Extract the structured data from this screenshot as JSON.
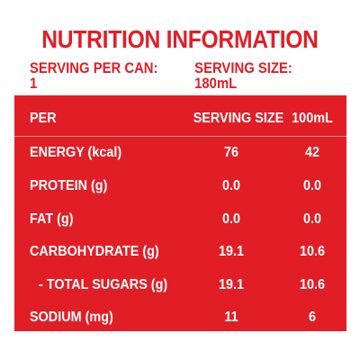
{
  "title": "NUTRITION INFORMATION",
  "serving_per_can": "SERVING PER CAN: 1",
  "serving_size": "SERVING SIZE: 180mL",
  "colors": {
    "accent": "#e11e26",
    "text_on_accent": "#ffffff"
  },
  "table": {
    "header": {
      "label": "PER",
      "col1": "SERVING SIZE",
      "col2": "100mL"
    },
    "rows": [
      {
        "label": "ENERGY (kcal)",
        "serving": "76",
        "per100": "42"
      },
      {
        "label": "PROTEIN (g)",
        "serving": "0.0",
        "per100": "0.0"
      },
      {
        "label": "FAT (g)",
        "serving": "0.0",
        "per100": "0.0"
      },
      {
        "label": "CARBOHYDRATE (g)",
        "serving": "19.1",
        "per100": "10.6"
      },
      {
        "label": "- TOTAL SUGARS (g)",
        "serving": "19.1",
        "per100": "10.6"
      },
      {
        "label": "SODIUM (mg)",
        "serving": "11",
        "per100": "6"
      }
    ]
  }
}
